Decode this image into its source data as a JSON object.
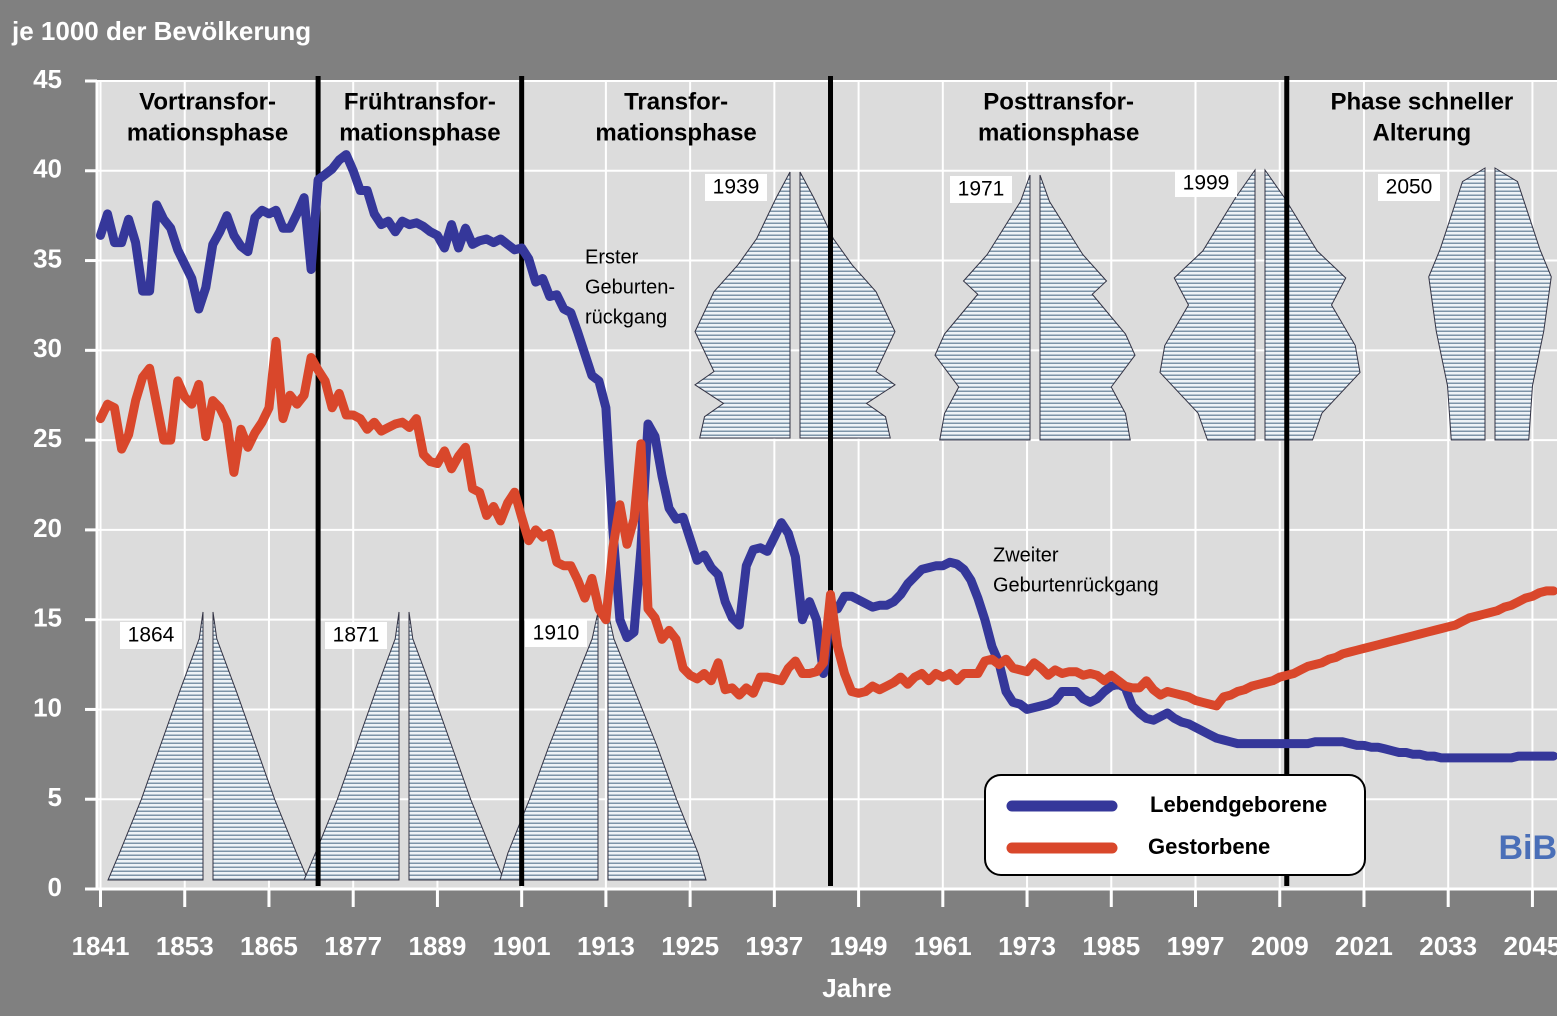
{
  "chart_data": {
    "type": "line",
    "y_label": "je 1000 der Bevölkerung",
    "x_label": "Jahre",
    "xlim": [
      1840.5,
      2048.5
    ],
    "ylim": [
      0,
      45
    ],
    "yticks": [
      0,
      5,
      10,
      15,
      20,
      25,
      30,
      35,
      40,
      45
    ],
    "xticks": [
      1841,
      1853,
      1865,
      1877,
      1889,
      1901,
      1913,
      1925,
      1937,
      1949,
      1961,
      1973,
      1985,
      1997,
      2009,
      2021,
      2033,
      2045
    ],
    "grid": true,
    "legend": "bottom-right",
    "x": [
      1841,
      1842,
      1843,
      1844,
      1845,
      1846,
      1847,
      1848,
      1849,
      1850,
      1851,
      1852,
      1853,
      1854,
      1855,
      1856,
      1857,
      1858,
      1859,
      1860,
      1861,
      1862,
      1863,
      1864,
      1865,
      1866,
      1867,
      1868,
      1869,
      1870,
      1871,
      1872,
      1873,
      1874,
      1875,
      1876,
      1877,
      1878,
      1879,
      1880,
      1881,
      1882,
      1883,
      1884,
      1885,
      1886,
      1887,
      1888,
      1889,
      1890,
      1891,
      1892,
      1893,
      1894,
      1895,
      1896,
      1897,
      1898,
      1899,
      1900,
      1901,
      1902,
      1903,
      1904,
      1905,
      1906,
      1907,
      1908,
      1909,
      1910,
      1911,
      1912,
      1913,
      1914,
      1915,
      1916,
      1917,
      1918,
      1919,
      1920,
      1921,
      1922,
      1923,
      1924,
      1925,
      1926,
      1927,
      1928,
      1929,
      1930,
      1931,
      1932,
      1933,
      1934,
      1935,
      1936,
      1937,
      1938,
      1939,
      1940,
      1941,
      1942,
      1943,
      1944,
      1945,
      1946,
      1947,
      1948,
      1949,
      1950,
      1951,
      1952,
      1953,
      1954,
      1955,
      1956,
      1957,
      1958,
      1959,
      1960,
      1961,
      1962,
      1963,
      1964,
      1965,
      1966,
      1967,
      1968,
      1969,
      1970,
      1971,
      1972,
      1973,
      1974,
      1975,
      1976,
      1977,
      1978,
      1979,
      1980,
      1981,
      1982,
      1983,
      1984,
      1985,
      1986,
      1987,
      1988,
      1989,
      1990,
      1991,
      1992,
      1993,
      1994,
      1995,
      1996,
      1997,
      1998,
      1999,
      2000,
      2001,
      2002,
      2003,
      2004,
      2005,
      2006,
      2007,
      2008,
      2009,
      2010,
      2011,
      2012,
      2013,
      2014,
      2015,
      2016,
      2017,
      2018,
      2019,
      2020,
      2021,
      2022,
      2023,
      2024,
      2025,
      2026,
      2027,
      2028,
      2029,
      2030,
      2031,
      2032,
      2033,
      2034,
      2035,
      2036,
      2037,
      2038,
      2039,
      2040,
      2041,
      2042,
      2043,
      2044,
      2045,
      2046,
      2047,
      2048
    ],
    "series": [
      {
        "name": "Lebendgeborene",
        "color": "#35379a",
        "values": [
          36.4,
          37.6,
          36.0,
          36.0,
          37.3,
          36.0,
          33.3,
          33.3,
          38.1,
          37.3,
          36.8,
          35.6,
          34.8,
          34.0,
          32.3,
          33.5,
          35.9,
          36.6,
          37.5,
          36.4,
          35.8,
          35.5,
          37.4,
          37.8,
          37.6,
          37.8,
          36.8,
          36.8,
          37.6,
          38.5,
          34.5,
          39.5,
          39.8,
          40.1,
          40.6,
          40.9,
          40.0,
          38.9,
          38.9,
          37.6,
          37.0,
          37.2,
          36.6,
          37.2,
          37.0,
          37.1,
          36.9,
          36.6,
          36.4,
          35.7,
          37.0,
          35.7,
          36.8,
          35.9,
          36.1,
          36.2,
          36.0,
          36.2,
          35.9,
          35.6,
          35.7,
          35.1,
          33.8,
          34.0,
          33.0,
          33.1,
          32.3,
          32.1,
          31.0,
          29.8,
          28.6,
          28.3,
          26.8,
          20.0,
          15.0,
          14.0,
          14.3,
          19.0,
          25.9,
          25.2,
          23.0,
          21.2,
          20.6,
          20.7,
          19.5,
          18.3,
          18.6,
          17.9,
          17.5,
          16.0,
          15.1,
          14.7,
          18.0,
          18.9,
          19.0,
          18.8,
          19.6,
          20.4,
          19.8,
          18.5,
          15.0,
          16.0,
          15.0,
          12.0,
          15.5,
          15.6,
          16.3,
          16.3,
          16.1,
          15.9,
          15.7,
          15.8,
          15.8,
          16.0,
          16.4,
          17.0,
          17.4,
          17.8,
          17.9,
          18.0,
          18.0,
          18.2,
          18.1,
          17.8,
          17.2,
          16.2,
          15.0,
          13.5,
          12.6,
          11.0,
          10.4,
          10.3,
          10.0,
          10.1,
          10.2,
          10.3,
          10.5,
          11.0,
          11.0,
          11.0,
          10.6,
          10.4,
          10.6,
          11.0,
          11.3,
          11.4,
          11.2,
          10.2,
          9.8,
          9.5,
          9.4,
          9.6,
          9.8,
          9.5,
          9.3,
          9.2,
          9.0,
          8.8,
          8.6,
          8.4,
          8.3,
          8.2,
          8.1,
          8.1,
          8.1,
          8.1,
          8.1,
          8.1,
          8.1,
          8.1,
          8.1,
          8.1,
          8.1,
          8.2,
          8.2,
          8.2,
          8.2,
          8.2,
          8.1,
          8.0,
          8.0,
          7.9,
          7.9,
          7.8,
          7.7,
          7.6,
          7.6,
          7.5,
          7.5,
          7.4,
          7.4,
          7.3,
          7.3,
          7.3,
          7.3,
          7.3,
          7.3,
          7.3,
          7.3,
          7.3,
          7.3,
          7.3,
          7.4,
          7.4,
          7.4,
          7.4,
          7.4,
          7.4
        ]
      },
      {
        "name": "Gestorbene",
        "color": "#d9472b",
        "values": [
          26.2,
          27.0,
          26.8,
          24.5,
          25.3,
          27.2,
          28.5,
          29.0,
          27.0,
          25.0,
          25.0,
          28.3,
          27.4,
          27.0,
          28.1,
          25.2,
          27.2,
          26.8,
          26.0,
          23.2,
          25.6,
          24.6,
          25.4,
          26.0,
          26.8,
          30.5,
          26.2,
          27.5,
          27.0,
          27.5,
          29.6,
          28.9,
          28.3,
          26.8,
          27.6,
          26.4,
          26.4,
          26.2,
          25.6,
          26.0,
          25.5,
          25.7,
          25.9,
          26.0,
          25.7,
          26.2,
          24.2,
          23.8,
          23.7,
          24.4,
          23.4,
          24.1,
          24.6,
          22.3,
          22.1,
          20.8,
          21.3,
          20.5,
          21.5,
          22.1,
          20.7,
          19.4,
          20.0,
          19.6,
          19.8,
          18.2,
          18.0,
          18.0,
          17.2,
          16.2,
          17.3,
          15.6,
          15.0,
          19.0,
          21.4,
          19.2,
          20.6,
          24.8,
          15.6,
          15.1,
          13.9,
          14.4,
          13.9,
          12.3,
          11.9,
          11.7,
          12.0,
          11.6,
          12.6,
          11.1,
          11.2,
          10.8,
          11.2,
          10.9,
          11.8,
          11.8,
          11.7,
          11.6,
          12.3,
          12.7,
          12.0,
          12.0,
          12.1,
          12.6,
          16.4,
          13.5,
          12.0,
          11.0,
          10.9,
          11.0,
          11.3,
          11.1,
          11.3,
          11.5,
          11.8,
          11.4,
          11.8,
          12.0,
          11.6,
          12.0,
          11.8,
          12.0,
          11.6,
          12.0,
          12.0,
          12.0,
          12.7,
          12.8,
          12.5,
          12.8,
          12.3,
          12.2,
          12.1,
          12.6,
          12.3,
          11.9,
          12.2,
          12.0,
          12.1,
          12.1,
          11.9,
          12.0,
          11.9,
          11.6,
          11.9,
          11.6,
          11.3,
          11.2,
          11.2,
          11.6,
          11.1,
          10.8,
          11.0,
          10.9,
          10.8,
          10.7,
          10.5,
          10.4,
          10.3,
          10.2,
          10.7,
          10.8,
          11.0,
          11.1,
          11.3,
          11.4,
          11.5,
          11.6,
          11.8,
          11.9,
          12.0,
          12.2,
          12.4,
          12.5,
          12.6,
          12.8,
          12.9,
          13.1,
          13.2,
          13.3,
          13.4,
          13.5,
          13.6,
          13.7,
          13.8,
          13.9,
          14.0,
          14.1,
          14.2,
          14.3,
          14.4,
          14.5,
          14.6,
          14.7,
          14.9,
          15.1,
          15.2,
          15.3,
          15.4,
          15.5,
          15.7,
          15.8,
          16.0,
          16.2,
          16.3,
          16.5,
          16.6,
          16.6
        ]
      }
    ],
    "phase_boundaries": [
      1872,
      1901,
      1945,
      2010
    ],
    "phases": [
      [
        "Vortransfor-",
        "mationsphase"
      ],
      [
        "Frühtransfor-",
        "mationsphase"
      ],
      [
        "Transfor-",
        "mationsphase"
      ],
      [
        "Posttransfor-",
        "mationsphase"
      ],
      [
        "Phase schneller",
        "Alterung"
      ]
    ],
    "annotations": [
      [
        "Erster",
        "Geburten-",
        "rückgang"
      ],
      [
        "Zweiter",
        "Geburtenrückgang"
      ]
    ],
    "pyramid_labels": [
      "1864",
      "1871",
      "1910",
      "1939",
      "1971",
      "1999",
      "2050"
    ],
    "logo": "BiB"
  }
}
